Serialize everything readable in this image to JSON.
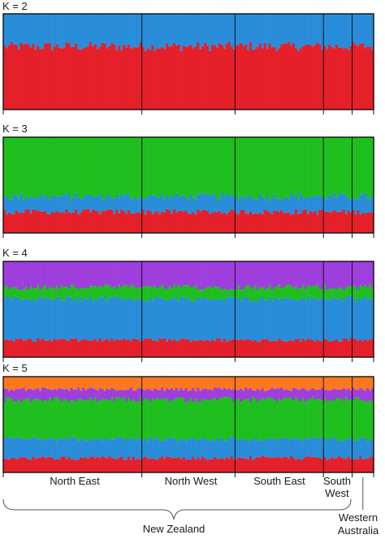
{
  "chart_data": {
    "type": "bar",
    "stacked": true,
    "normalized": true,
    "ylim": [
      0,
      1
    ],
    "panels": [
      {
        "label": "K = 2",
        "cluster_colors": [
          "#e8212b",
          "#2a8fdc"
        ],
        "mean_proportions": [
          0.66,
          0.34
        ],
        "variation": [
          0.05
        ]
      },
      {
        "label": "K = 3",
        "cluster_colors": [
          "#e8212b",
          "#2a8fdc",
          "#1fc21f"
        ],
        "mean_proportions": [
          0.22,
          0.16,
          0.62
        ],
        "variation": [
          0.03,
          0.04
        ]
      },
      {
        "label": "K = 4",
        "cluster_colors": [
          "#e8212b",
          "#2a8fdc",
          "#1fc21f",
          "#a040e0"
        ],
        "mean_proportions": [
          0.18,
          0.43,
          0.12,
          0.27
        ],
        "variation": [
          0.02,
          0.03,
          0.03
        ]
      },
      {
        "label": "K = 5",
        "cluster_colors": [
          "#e8212b",
          "#2a8fdc",
          "#1fc21f",
          "#a040e0",
          "#ff7a1f"
        ],
        "mean_proportions": [
          0.15,
          0.2,
          0.41,
          0.11,
          0.13
        ],
        "variation": [
          0.02,
          0.025,
          0.03,
          0.02
        ]
      }
    ],
    "regions": [
      {
        "name": "North East",
        "individuals": 58
      },
      {
        "name": "North West",
        "individuals": 39
      },
      {
        "name": "South East",
        "individuals": 37
      },
      {
        "name": "South West",
        "individuals": 12
      },
      {
        "name": "",
        "individuals": 9
      }
    ],
    "region_labels": [
      {
        "line1": "North East",
        "line2": ""
      },
      {
        "line1": "North West",
        "line2": ""
      },
      {
        "line1": "South East",
        "line2": ""
      },
      {
        "line1": "South",
        "line2": "West"
      }
    ],
    "group_labels": {
      "new_zealand": "New Zealand",
      "western_australia_line1": "Western",
      "western_australia_line2": "Australia"
    }
  }
}
